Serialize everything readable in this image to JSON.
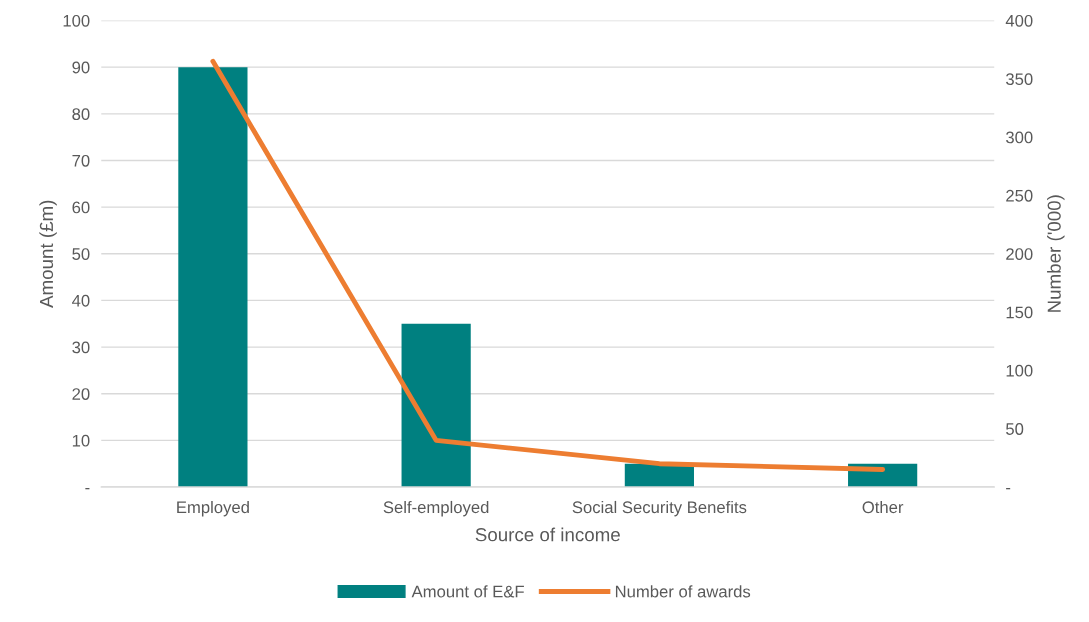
{
  "chart_data": {
    "type": "bar",
    "xlabel": "Source of income",
    "ylabel": "Amount (£m)",
    "y2label": "Number ('000)",
    "categories": [
      "Employed",
      "Self-employed",
      "Social Security Benefits",
      "Other"
    ],
    "series": [
      {
        "name": "Amount of E&F",
        "color": "#008080",
        "values": [
          90,
          35,
          5,
          5
        ]
      },
      {
        "name": "Number of awards",
        "type": "line",
        "axis": "y2",
        "color": "#ed7d31",
        "values": [
          365,
          40,
          20,
          15
        ]
      }
    ],
    "ylim": [
      0,
      100
    ],
    "yticks": [
      {
        "value": 0,
        "label": "-"
      },
      10,
      20,
      30,
      40,
      50,
      60,
      70,
      80,
      90,
      100
    ],
    "y2lim": [
      0,
      400
    ],
    "y2ticks": [
      {
        "value": 0,
        "label": "-"
      },
      50,
      100,
      150,
      200,
      250,
      300,
      350,
      400
    ],
    "grid": "y",
    "legend": "bottom"
  }
}
